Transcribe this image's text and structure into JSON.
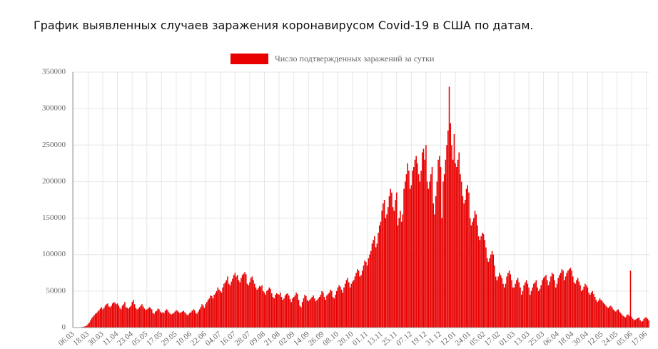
{
  "chart_data": {
    "type": "bar",
    "title": "График выявленных случаев заражения коронавирусом Covid-19 в США по датам.",
    "categories": [
      "06.03",
      null,
      null,
      null,
      null,
      null,
      null,
      null,
      null,
      null,
      null,
      null,
      "18.03",
      null,
      null,
      null,
      null,
      null,
      null,
      null,
      null,
      null,
      null,
      null,
      "30.03",
      null,
      null,
      null,
      null,
      null,
      null,
      null,
      null,
      null,
      null,
      null,
      "11.04",
      null,
      null,
      null,
      null,
      null,
      null,
      null,
      null,
      null,
      null,
      null,
      "23.04",
      null,
      null,
      null,
      null,
      null,
      null,
      null,
      null,
      null,
      null,
      null,
      "05.05",
      null,
      null,
      null,
      null,
      null,
      null,
      null,
      null,
      null,
      null,
      null,
      "17.05",
      null,
      null,
      null,
      null,
      null,
      null,
      null,
      null,
      null,
      null,
      null,
      "29.05",
      null,
      null,
      null,
      null,
      null,
      null,
      null,
      null,
      null,
      null,
      null,
      "10.06",
      null,
      null,
      null,
      null,
      null,
      null,
      null,
      null,
      null,
      null,
      null,
      "22.06",
      null,
      null,
      null,
      null,
      null,
      null,
      null,
      null,
      null,
      null,
      null,
      "04.07",
      null,
      null,
      null,
      null,
      null,
      null,
      null,
      null,
      null,
      null,
      null,
      "16.07",
      null,
      null,
      null,
      null,
      null,
      null,
      null,
      null,
      null,
      null,
      null,
      "28.07",
      null,
      null,
      null,
      null,
      null,
      null,
      null,
      null,
      null,
      null,
      null,
      "09.08",
      null,
      null,
      null,
      null,
      null,
      null,
      null,
      null,
      null,
      null,
      null,
      "21.08",
      null,
      null,
      null,
      null,
      null,
      null,
      null,
      null,
      null,
      null,
      null,
      "02.09",
      null,
      null,
      null,
      null,
      null,
      null,
      null,
      null,
      null,
      null,
      null,
      "14.09",
      null,
      null,
      null,
      null,
      null,
      null,
      null,
      null,
      null,
      null,
      null,
      "26.09",
      null,
      null,
      null,
      null,
      null,
      null,
      null,
      null,
      null,
      null,
      null,
      "08.10",
      null,
      null,
      null,
      null,
      null,
      null,
      null,
      null,
      null,
      null,
      null,
      "20.10",
      null,
      null,
      null,
      null,
      null,
      null,
      null,
      null,
      null,
      null,
      null,
      "01.11",
      null,
      null,
      null,
      null,
      null,
      null,
      null,
      null,
      null,
      null,
      null,
      "13.11",
      null,
      null,
      null,
      null,
      null,
      null,
      null,
      null,
      null,
      null,
      null,
      "25.11",
      null,
      null,
      null,
      null,
      null,
      null,
      null,
      null,
      null,
      null,
      null,
      "07.12",
      null,
      null,
      null,
      null,
      null,
      null,
      null,
      null,
      null,
      null,
      null,
      "19.12",
      null,
      null,
      null,
      null,
      null,
      null,
      null,
      null,
      null,
      null,
      null,
      "31.12",
      null,
      null,
      null,
      null,
      null,
      null,
      null,
      null,
      null,
      null,
      null,
      "12.01",
      null,
      null,
      null,
      null,
      null,
      null,
      null,
      null,
      null,
      null,
      null,
      "24.01",
      null,
      null,
      null,
      null,
      null,
      null,
      null,
      null,
      null,
      null,
      null,
      "05.02",
      null,
      null,
      null,
      null,
      null,
      null,
      null,
      null,
      null,
      null,
      null,
      "17.02",
      null,
      null,
      null,
      null,
      null,
      null,
      null,
      null,
      null,
      null,
      null,
      "01.03",
      null,
      null,
      null,
      null,
      null,
      null,
      null,
      null,
      null,
      null,
      null,
      "13.03",
      null,
      null,
      null,
      null,
      null,
      null,
      null,
      null,
      null,
      null,
      null,
      "25.03",
      null,
      null,
      null,
      null,
      null,
      null,
      null,
      null,
      null,
      null,
      null,
      "06.04",
      null,
      null,
      null,
      null,
      null,
      null,
      null,
      null,
      null,
      null,
      null,
      "18.04",
      null,
      null,
      null,
      null,
      null,
      null,
      null,
      null,
      null,
      null,
      null,
      "30.04",
      null,
      null,
      null,
      null,
      null,
      null,
      null,
      null,
      null,
      null,
      null,
      "12.05",
      null,
      null,
      null,
      null,
      null,
      null,
      null,
      null,
      null,
      null,
      null,
      "24.05",
      null,
      null,
      null,
      null,
      null,
      null,
      null,
      null,
      null,
      null,
      null,
      "05.06",
      null,
      null,
      null,
      null,
      null,
      null,
      null,
      null,
      null,
      null,
      null,
      "17.06",
      null,
      null
    ],
    "series": [
      {
        "name": "Число подтвержденных заражений за сутки",
        "color": "#e80000",
        "values": [
          0,
          0,
          0,
          100,
          200,
          300,
          500,
          700,
          1000,
          1500,
          2000,
          3000,
          5000,
          7000,
          10000,
          13000,
          15000,
          17000,
          19000,
          20000,
          22000,
          24000,
          26000,
          28000,
          25000,
          27000,
          30000,
          32000,
          33000,
          29000,
          28000,
          30000,
          33000,
          35000,
          34000,
          32000,
          33000,
          30000,
          27000,
          25000,
          30000,
          32000,
          35000,
          28000,
          27000,
          26000,
          28000,
          30000,
          35000,
          38000,
          32000,
          27000,
          25000,
          26000,
          28000,
          30000,
          32000,
          29000,
          26000,
          24000,
          25000,
          26000,
          28000,
          27000,
          25000,
          20000,
          19000,
          22000,
          23000,
          26000,
          25000,
          22000,
          20000,
          21000,
          20000,
          23000,
          25000,
          24000,
          21000,
          19000,
          18000,
          19000,
          20000,
          22000,
          24000,
          23000,
          21000,
          20000,
          21000,
          22000,
          23000,
          21000,
          19000,
          17000,
          18000,
          20000,
          21000,
          23000,
          25000,
          24000,
          20000,
          19000,
          22000,
          25000,
          28000,
          32000,
          30000,
          27000,
          32000,
          35000,
          38000,
          40000,
          44000,
          43000,
          40000,
          45000,
          47000,
          50000,
          55000,
          52000,
          50000,
          48000,
          55000,
          60000,
          62000,
          65000,
          70000,
          60000,
          58000,
          63000,
          67000,
          72000,
          75000,
          70000,
          72000,
          65000,
          62000,
          68000,
          72000,
          74000,
          76000,
          73000,
          60000,
          58000,
          62000,
          68000,
          70000,
          65000,
          60000,
          55000,
          52000,
          54000,
          57000,
          56000,
          58000,
          50000,
          48000,
          45000,
          50000,
          52000,
          55000,
          53000,
          47000,
          42000,
          40000,
          45000,
          47000,
          46000,
          45000,
          48000,
          42000,
          38000,
          40000,
          44000,
          46000,
          47000,
          44000,
          39000,
          35000,
          40000,
          42000,
          44000,
          48000,
          46000,
          38000,
          30000,
          28000,
          35000,
          40000,
          45000,
          43000,
          38000,
          36000,
          38000,
          40000,
          42000,
          44000,
          40000,
          36000,
          38000,
          40000,
          42000,
          45000,
          50000,
          48000,
          42000,
          38000,
          44000,
          46000,
          48000,
          52000,
          50000,
          42000,
          40000,
          45000,
          50000,
          55000,
          58000,
          56000,
          52000,
          48000,
          55000,
          60000,
          65000,
          68000,
          62000,
          55000,
          60000,
          63000,
          65000,
          70000,
          75000,
          80000,
          78000,
          70000,
          72000,
          78000,
          85000,
          92000,
          90000,
          85000,
          95000,
          100000,
          105000,
          115000,
          120000,
          125000,
          110000,
          115000,
          130000,
          140000,
          145000,
          160000,
          170000,
          175000,
          150000,
          155000,
          165000,
          180000,
          190000,
          185000,
          165000,
          160000,
          175000,
          185000,
          140000,
          150000,
          160000,
          145000,
          155000,
          190000,
          200000,
          210000,
          225000,
          215000,
          190000,
          195000,
          215000,
          220000,
          230000,
          235000,
          225000,
          210000,
          200000,
          215000,
          240000,
          245000,
          230000,
          250000,
          200000,
          190000,
          200000,
          210000,
          220000,
          170000,
          155000,
          180000,
          200000,
          230000,
          235000,
          220000,
          150000,
          200000,
          210000,
          230000,
          250000,
          270000,
          330000,
          280000,
          250000,
          230000,
          265000,
          225000,
          220000,
          230000,
          240000,
          210000,
          200000,
          180000,
          170000,
          175000,
          190000,
          195000,
          185000,
          150000,
          140000,
          145000,
          150000,
          160000,
          155000,
          140000,
          125000,
          120000,
          125000,
          130000,
          128000,
          120000,
          110000,
          95000,
          90000,
          95000,
          100000,
          105000,
          100000,
          85000,
          70000,
          65000,
          70000,
          75000,
          72000,
          68000,
          60000,
          55000,
          60000,
          70000,
          75000,
          78000,
          73000,
          65000,
          55000,
          55000,
          60000,
          65000,
          68000,
          62000,
          55000,
          45000,
          50000,
          58000,
          62000,
          65000,
          60000,
          55000,
          45000,
          50000,
          55000,
          60000,
          62000,
          65000,
          55000,
          50000,
          53000,
          58000,
          65000,
          68000,
          70000,
          72000,
          65000,
          58000,
          63000,
          70000,
          75000,
          73000,
          65000,
          55000,
          60000,
          68000,
          72000,
          75000,
          80000,
          78000,
          65000,
          70000,
          75000,
          78000,
          80000,
          82000,
          78000,
          70000,
          62000,
          60000,
          65000,
          68000,
          63000,
          58000,
          50000,
          52000,
          56000,
          60000,
          58000,
          55000,
          48000,
          45000,
          48000,
          50000,
          46000,
          42000,
          38000,
          35000,
          37000,
          40000,
          38000,
          36000,
          34000,
          32000,
          30000,
          28000,
          27000,
          29000,
          30000,
          28000,
          25000,
          23000,
          22000,
          24000,
          25000,
          22000,
          20000,
          18000,
          16000,
          15000,
          14000,
          17000,
          18000,
          16000,
          78000,
          15000,
          12000,
          10000,
          11000,
          12000,
          13000,
          14000,
          10000,
          8000,
          9000,
          12000,
          14000,
          14000,
          12000,
          10000
        ]
      }
    ],
    "ylim": [
      0,
      350000
    ],
    "yticks": [
      0,
      50000,
      100000,
      150000,
      200000,
      250000,
      300000,
      350000
    ],
    "grid": true
  }
}
